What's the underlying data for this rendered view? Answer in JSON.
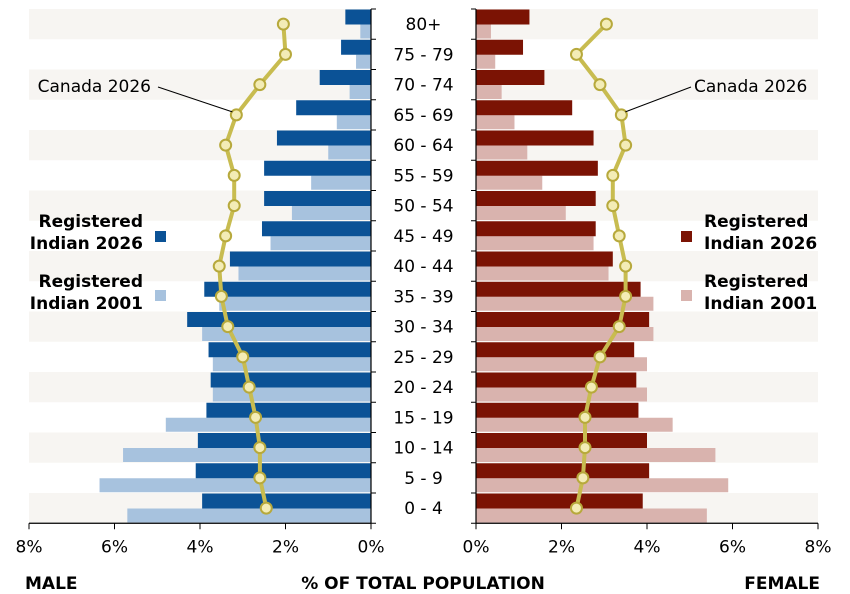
{
  "chart_data": {
    "type": "bar",
    "subtype": "population-pyramid",
    "title": "",
    "age_groups": [
      "0 - 4",
      "5 - 9",
      "10 - 14",
      "15 - 19",
      "20 - 24",
      "25 - 29",
      "30 - 34",
      "35 - 39",
      "40 - 44",
      "45 - 49",
      "50 - 54",
      "55 - 59",
      "60 - 64",
      "65 - 69",
      "70 - 74",
      "75 - 79",
      "80+"
    ],
    "xlabel": "% OF TOTAL POPULATION",
    "left_label": "MALE",
    "right_label": "FEMALE",
    "xlim": [
      0,
      8
    ],
    "x_ticks": [
      "8%",
      "6%",
      "4%",
      "2%",
      "0%"
    ],
    "x_ticks_right": [
      "0%",
      "2%",
      "4%",
      "6%",
      "8%"
    ],
    "grid": false,
    "series": [
      {
        "name": "Registered Indian 2026",
        "legend_lines": [
          "Registered",
          "Indian 2026"
        ],
        "side": "male",
        "color": "#0b5296",
        "values": [
          3.95,
          4.1,
          4.05,
          3.85,
          3.75,
          3.8,
          4.3,
          3.9,
          3.3,
          2.55,
          2.5,
          2.5,
          2.2,
          1.75,
          1.2,
          0.7,
          0.6
        ]
      },
      {
        "name": "Registered Indian 2001",
        "legend_lines": [
          "Registered",
          "Indian 2001"
        ],
        "side": "male",
        "color": "#a7c2de",
        "values": [
          5.7,
          6.35,
          5.8,
          4.8,
          3.7,
          3.7,
          3.95,
          3.55,
          3.1,
          2.35,
          1.85,
          1.4,
          1.0,
          0.8,
          0.5,
          0.35,
          0.25
        ]
      },
      {
        "name": "Registered Indian 2026",
        "legend_lines": [
          "Registered",
          "Indian 2026"
        ],
        "side": "female",
        "color": "#7b1304",
        "values": [
          3.9,
          4.05,
          4.0,
          3.8,
          3.75,
          3.7,
          4.05,
          3.85,
          3.2,
          2.8,
          2.8,
          2.85,
          2.75,
          2.25,
          1.6,
          1.1,
          1.25
        ]
      },
      {
        "name": "Registered Indian 2001",
        "legend_lines": [
          "Registered",
          "Indian 2001"
        ],
        "side": "female",
        "color": "#d9b3ae",
        "values": [
          5.4,
          5.9,
          5.6,
          4.6,
          4.0,
          4.0,
          4.15,
          4.15,
          3.1,
          2.75,
          2.1,
          1.55,
          1.2,
          0.9,
          0.6,
          0.45,
          0.35
        ]
      },
      {
        "name": "Canada 2026",
        "side": "male",
        "color": "#c8bc50",
        "values": [
          2.45,
          2.6,
          2.6,
          2.7,
          2.85,
          3.0,
          3.35,
          3.5,
          3.55,
          3.4,
          3.2,
          3.2,
          3.4,
          3.15,
          2.6,
          2.0,
          2.05
        ]
      },
      {
        "name": "Canada 2026",
        "side": "female",
        "color": "#c8bc50",
        "values": [
          2.35,
          2.5,
          2.55,
          2.55,
          2.7,
          2.9,
          3.35,
          3.5,
          3.5,
          3.35,
          3.2,
          3.2,
          3.5,
          3.4,
          2.9,
          2.35,
          3.05
        ]
      }
    ]
  }
}
